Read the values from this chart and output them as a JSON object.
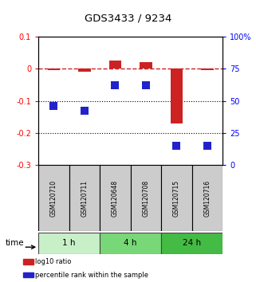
{
  "title": "GDS3433 / 9234",
  "samples": [
    "GSM120710",
    "GSM120711",
    "GSM120648",
    "GSM120708",
    "GSM120715",
    "GSM120716"
  ],
  "log10_ratio": [
    -0.005,
    -0.01,
    0.025,
    0.02,
    -0.17,
    -0.005
  ],
  "percentile_rank": [
    46,
    42,
    62,
    62,
    15,
    15
  ],
  "ylim_left": [
    -0.3,
    0.1
  ],
  "ylim_right": [
    0,
    100
  ],
  "yticks_left": [
    0.1,
    0.0,
    -0.1,
    -0.2,
    -0.3
  ],
  "yticks_right": [
    100,
    75,
    50,
    25,
    0
  ],
  "ytick_labels_left": [
    "0.1",
    "0",
    "-0.1",
    "-0.2",
    "-0.3"
  ],
  "ytick_labels_right": [
    "100%",
    "75",
    "50",
    "25",
    "0"
  ],
  "time_groups": [
    {
      "label": "1 h",
      "samples": [
        0,
        1
      ],
      "color": "#c8f0c8"
    },
    {
      "label": "4 h",
      "samples": [
        2,
        3
      ],
      "color": "#78d878"
    },
    {
      "label": "24 h",
      "samples": [
        4,
        5
      ],
      "color": "#44bb44"
    }
  ],
  "time_label": "time",
  "legend_items": [
    {
      "label": "log10 ratio",
      "color": "#cc2222"
    },
    {
      "label": "percentile rank within the sample",
      "color": "#2222cc"
    }
  ],
  "bar_color": "#cc2222",
  "dot_color": "#2222cc",
  "hline_color": "#cc2222",
  "hline_style": "--",
  "dotted_lines": [
    -0.1,
    -0.2
  ],
  "bar_width": 0.4,
  "dot_size": 50,
  "background_color": "#ffffff",
  "plot_bg_color": "#ffffff",
  "sample_box_color": "#cccccc",
  "figsize": [
    3.21,
    3.54
  ],
  "dpi": 100
}
